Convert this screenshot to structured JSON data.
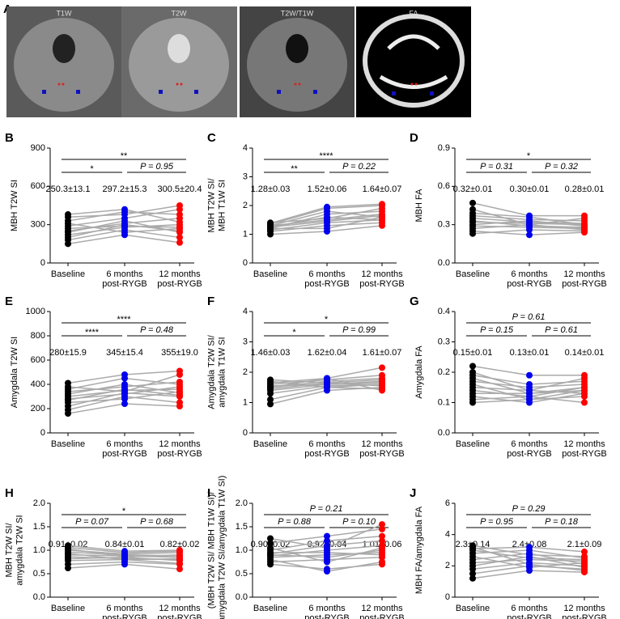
{
  "panel_a": {
    "label": "A",
    "images": [
      {
        "label": "T1W"
      },
      {
        "label": "T2W"
      },
      {
        "label": "T2W/T1W"
      },
      {
        "label": "FA"
      }
    ]
  },
  "chart_data": [
    {
      "type": "line",
      "panel": "B",
      "ylabel": [
        "MBH T2W SI"
      ],
      "categories": [
        [
          "Baseline"
        ],
        [
          "6 months",
          "post-RYGB"
        ],
        [
          "12 months",
          "post-RYGB"
        ]
      ],
      "group_colors": [
        "#000000",
        "#0000ee",
        "#ff0000"
      ],
      "ylim": [
        0,
        900
      ],
      "yticks": [
        0,
        300,
        600,
        900
      ],
      "mean_labels": [
        "250.3±13.1",
        "297.2±15.3",
        "300.5±20.4"
      ],
      "comparisons": {
        "baseline_vs_6m": "*",
        "6m_vs_12m": "P = 0.95",
        "baseline_vs_12m": "**"
      },
      "subjects": [
        [
          150,
          220,
          160
        ],
        [
          180,
          260,
          200
        ],
        [
          200,
          300,
          250
        ],
        [
          220,
          280,
          300
        ],
        [
          240,
          330,
          240
        ],
        [
          250,
          310,
          350
        ],
        [
          270,
          290,
          280
        ],
        [
          290,
          350,
          420
        ],
        [
          310,
          240,
          270
        ],
        [
          330,
          400,
          380
        ],
        [
          360,
          380,
          450
        ],
        [
          380,
          420,
          320
        ]
      ]
    },
    {
      "type": "line",
      "panel": "C",
      "ylabel": [
        "MBH T2W SI/",
        "MBH T1W SI"
      ],
      "categories": [
        [
          "Baseline"
        ],
        [
          "6 months",
          "post-RYGB"
        ],
        [
          "12 months",
          "post-RYGB"
        ]
      ],
      "group_colors": [
        "#000000",
        "#0000ee",
        "#ff0000"
      ],
      "ylim": [
        0,
        4
      ],
      "yticks": [
        0,
        1,
        2,
        3,
        4
      ],
      "mean_labels": [
        "1.28±0.03",
        "1.52±0.06",
        "1.64±0.07"
      ],
      "comparisons": {
        "baseline_vs_6m": "**",
        "6m_vs_12m": "P = 0.22",
        "baseline_vs_12m": "****"
      },
      "subjects": [
        [
          1.0,
          1.1,
          1.3
        ],
        [
          1.1,
          1.3,
          1.4
        ],
        [
          1.15,
          1.4,
          1.5
        ],
        [
          1.2,
          1.2,
          1.6
        ],
        [
          1.25,
          1.6,
          1.5
        ],
        [
          1.3,
          1.5,
          1.7
        ],
        [
          1.3,
          1.8,
          1.6
        ],
        [
          1.35,
          1.9,
          2.0
        ],
        [
          1.4,
          1.55,
          1.9
        ],
        [
          1.2,
          1.7,
          1.8
        ],
        [
          1.25,
          1.45,
          1.65
        ],
        [
          1.38,
          1.95,
          2.05
        ]
      ]
    },
    {
      "type": "line",
      "panel": "D",
      "ylabel": [
        "MBH FA"
      ],
      "categories": [
        [
          "Baseline"
        ],
        [
          "6 months",
          "post-RYGB"
        ],
        [
          "12 months",
          "post-RYGB"
        ]
      ],
      "group_colors": [
        "#000000",
        "#0000ee",
        "#ff0000"
      ],
      "ylim": [
        0,
        0.9
      ],
      "yticks": [
        {
          "value": 0,
          "label": "0.0"
        },
        0.3,
        0.6,
        0.9
      ],
      "mean_labels": [
        "0.32±0.01",
        "0.30±0.01",
        "0.28±0.01"
      ],
      "comparisons": {
        "baseline_vs_6m": "P = 0.31",
        "6m_vs_12m": "P = 0.32",
        "baseline_vs_12m": "*"
      },
      "subjects": [
        [
          0.23,
          0.26,
          0.25
        ],
        [
          0.25,
          0.22,
          0.24
        ],
        [
          0.27,
          0.3,
          0.26
        ],
        [
          0.29,
          0.28,
          0.27
        ],
        [
          0.3,
          0.33,
          0.29
        ],
        [
          0.32,
          0.31,
          0.3
        ],
        [
          0.33,
          0.29,
          0.28
        ],
        [
          0.35,
          0.32,
          0.31
        ],
        [
          0.37,
          0.34,
          0.33
        ],
        [
          0.39,
          0.36,
          0.3
        ],
        [
          0.42,
          0.3,
          0.35
        ],
        [
          0.47,
          0.37,
          0.37
        ]
      ]
    },
    {
      "type": "line",
      "panel": "E",
      "ylabel": [
        "Amygdala T2W SI"
      ],
      "categories": [
        [
          "Baseline"
        ],
        [
          "6 months",
          "post-RYGB"
        ],
        [
          "12 months",
          "post-RYGB"
        ]
      ],
      "group_colors": [
        "#000000",
        "#0000ee",
        "#ff0000"
      ],
      "ylim": [
        0,
        1000
      ],
      "yticks": [
        0,
        200,
        400,
        600,
        800,
        1000
      ],
      "mean_labels": [
        "280±15.9",
        "345±15.4",
        "355±19.0"
      ],
      "comparisons": {
        "baseline_vs_6m": "****",
        "6m_vs_12m": "P = 0.48",
        "baseline_vs_12m": "****"
      },
      "subjects": [
        [
          160,
          240,
          220
        ],
        [
          190,
          300,
          250
        ],
        [
          220,
          330,
          300
        ],
        [
          250,
          280,
          340
        ],
        [
          270,
          360,
          310
        ],
        [
          280,
          320,
          380
        ],
        [
          300,
          350,
          360
        ],
        [
          320,
          400,
          330
        ],
        [
          340,
          380,
          420
        ],
        [
          360,
          450,
          400
        ],
        [
          380,
          340,
          480
        ],
        [
          410,
          480,
          510
        ]
      ]
    },
    {
      "type": "line",
      "panel": "F",
      "ylabel": [
        "Amygdala T2W SI/",
        "amygdala T1W SI"
      ],
      "categories": [
        [
          "Baseline"
        ],
        [
          "6 months",
          "post-RYGB"
        ],
        [
          "12 months",
          "post-RYGB"
        ]
      ],
      "group_colors": [
        "#000000",
        "#0000ee",
        "#ff0000"
      ],
      "ylim": [
        0,
        4
      ],
      "yticks": [
        0,
        1,
        2,
        3,
        4
      ],
      "mean_labels": [
        "1.46±0.03",
        "1.62±0.04",
        "1.61±0.07"
      ],
      "comparisons": {
        "baseline_vs_6m": "*",
        "6m_vs_12m": "P = 0.99",
        "baseline_vs_12m": "*"
      },
      "subjects": [
        [
          0.95,
          1.4,
          1.5
        ],
        [
          1.1,
          1.5,
          1.45
        ],
        [
          1.3,
          1.55,
          1.6
        ],
        [
          1.4,
          1.6,
          1.7
        ],
        [
          1.45,
          1.65,
          1.55
        ],
        [
          1.5,
          1.7,
          1.8
        ],
        [
          1.55,
          1.6,
          1.65
        ],
        [
          1.6,
          1.75,
          1.9
        ],
        [
          1.65,
          1.8,
          2.15
        ],
        [
          1.7,
          1.5,
          1.6
        ],
        [
          1.75,
          1.65,
          1.75
        ],
        [
          1.5,
          1.8,
          1.4
        ]
      ]
    },
    {
      "type": "line",
      "panel": "G",
      "ylabel": [
        "Amygdala FA"
      ],
      "categories": [
        [
          "Baseline"
        ],
        [
          "6 months",
          "post-RYGB"
        ],
        [
          "12 months",
          "post-RYGB"
        ]
      ],
      "group_colors": [
        "#000000",
        "#0000ee",
        "#ff0000"
      ],
      "ylim": [
        0,
        0.4
      ],
      "yticks": [
        {
          "value": 0,
          "label": "0.0"
        },
        0.1,
        0.2,
        0.3,
        0.4
      ],
      "mean_labels": [
        "0.15±0.01",
        "0.13±0.01",
        "0.14±0.01"
      ],
      "comparisons": {
        "baseline_vs_6m": "P = 0.15",
        "6m_vs_12m": "P = 0.61",
        "baseline_vs_12m": "P = 0.61"
      },
      "subjects": [
        [
          0.1,
          0.11,
          0.12
        ],
        [
          0.11,
          0.12,
          0.1
        ],
        [
          0.12,
          0.1,
          0.13
        ],
        [
          0.13,
          0.13,
          0.14
        ],
        [
          0.14,
          0.12,
          0.15
        ],
        [
          0.15,
          0.14,
          0.13
        ],
        [
          0.16,
          0.11,
          0.14
        ],
        [
          0.17,
          0.15,
          0.16
        ],
        [
          0.18,
          0.13,
          0.15
        ],
        [
          0.19,
          0.16,
          0.17
        ],
        [
          0.2,
          0.14,
          0.18
        ],
        [
          0.22,
          0.19,
          0.19
        ]
      ]
    },
    {
      "type": "line",
      "panel": "H",
      "ylabel": [
        "MBH T2W SI/",
        "amygdala T2W SI"
      ],
      "categories": [
        [
          "Baseline"
        ],
        [
          "6 months",
          "post-RYGB"
        ],
        [
          "12 months",
          "post-RYGB"
        ]
      ],
      "group_colors": [
        "#000000",
        "#0000ee",
        "#ff0000"
      ],
      "ylim": [
        0,
        2
      ],
      "yticks": [
        {
          "value": 0,
          "label": "0.0"
        },
        0.5,
        {
          "value": 1,
          "label": "1.0"
        },
        1.5,
        {
          "value": 2,
          "label": "2.0"
        }
      ],
      "mean_labels": [
        "0.91±0.02",
        "0.84±0.01",
        "0.82±0.02"
      ],
      "comparisons": {
        "baseline_vs_6m": "P = 0.07",
        "6m_vs_12m": "P = 0.68",
        "baseline_vs_12m": "*"
      },
      "subjects": [
        [
          0.62,
          0.7,
          0.6
        ],
        [
          0.7,
          0.75,
          0.7
        ],
        [
          0.78,
          0.8,
          0.72
        ],
        [
          0.82,
          0.85,
          0.78
        ],
        [
          0.86,
          0.82,
          0.8
        ],
        [
          0.9,
          0.88,
          0.85
        ],
        [
          0.93,
          0.8,
          0.82
        ],
        [
          0.96,
          0.9,
          0.88
        ],
        [
          1.0,
          0.92,
          0.95
        ],
        [
          1.03,
          0.86,
          0.9
        ],
        [
          1.06,
          0.95,
          0.98
        ],
        [
          1.1,
          0.98,
          1.0
        ]
      ]
    },
    {
      "type": "line",
      "panel": "I",
      "ylabel": [
        "(MBH T2W SI/ MBH T1W SI)/",
        "(amygdala T2W SI/amygdala T1W SI)"
      ],
      "categories": [
        [
          "Baseline"
        ],
        [
          "6 months",
          "post-RYGB"
        ],
        [
          "12 months",
          "post-RYGB"
        ]
      ],
      "group_colors": [
        "#000000",
        "#0000ee",
        "#ff0000"
      ],
      "ylim": [
        0,
        2
      ],
      "yticks": [
        {
          "value": 0,
          "label": "0.0"
        },
        0.5,
        {
          "value": 1,
          "label": "1.0"
        },
        1.5,
        {
          "value": 2,
          "label": "2.0"
        }
      ],
      "mean_labels": [
        "0.90±0.02",
        "0.92±0.04",
        "1.01±0.06"
      ],
      "comparisons": {
        "baseline_vs_6m": "P = 0.88",
        "6m_vs_12m": "P = 0.10",
        "baseline_vs_12m": "P = 0.21"
      },
      "subjects": [
        [
          0.7,
          0.6,
          0.7
        ],
        [
          0.75,
          0.8,
          0.85
        ],
        [
          0.8,
          0.55,
          0.75
        ],
        [
          0.85,
          0.9,
          0.95
        ],
        [
          0.88,
          1.0,
          1.1
        ],
        [
          0.9,
          0.85,
          1.0
        ],
        [
          0.92,
          1.1,
          1.2
        ],
        [
          0.95,
          0.95,
          0.9
        ],
        [
          1.0,
          1.2,
          1.3
        ],
        [
          1.05,
          0.75,
          1.05
        ],
        [
          1.15,
          1.3,
          1.45
        ],
        [
          1.25,
          1.05,
          1.55
        ]
      ]
    },
    {
      "type": "line",
      "panel": "J",
      "ylabel": [
        "MBH FA/amygdala FA"
      ],
      "categories": [
        [
          "Baseline"
        ],
        [
          "6 months",
          "post-RYGB"
        ],
        [
          "12 months",
          "post-RYGB"
        ]
      ],
      "group_colors": [
        "#000000",
        "#0000ee",
        "#ff0000"
      ],
      "ylim": [
        0,
        6
      ],
      "yticks": [
        0,
        2,
        4,
        6
      ],
      "mean_labels": [
        "2.3±0.14",
        "2.4±0.08",
        "2.1±0.09"
      ],
      "comparisons": {
        "baseline_vs_6m": "P = 0.95",
        "6m_vs_12m": "P = 0.18",
        "baseline_vs_12m": "P = 0.29"
      },
      "subjects": [
        [
          1.2,
          1.7,
          1.6
        ],
        [
          1.5,
          2.0,
          1.8
        ],
        [
          1.8,
          2.2,
          2.0
        ],
        [
          2.0,
          2.6,
          1.9
        ],
        [
          2.2,
          2.4,
          2.3
        ],
        [
          2.4,
          2.8,
          2.1
        ],
        [
          2.6,
          1.9,
          2.2
        ],
        [
          2.8,
          3.0,
          2.5
        ],
        [
          3.0,
          2.5,
          2.4
        ],
        [
          3.1,
          3.2,
          2.9
        ],
        [
          3.2,
          2.1,
          1.7
        ],
        [
          3.3,
          2.7,
          2.6
        ]
      ]
    }
  ]
}
